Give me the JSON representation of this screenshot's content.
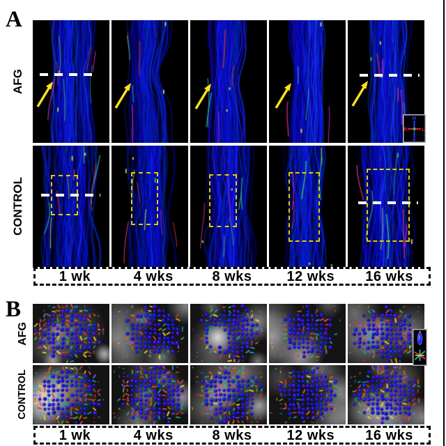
{
  "figure": {
    "panel_a": {
      "label": "A",
      "rows": [
        "AFG",
        "CONTROL"
      ],
      "timepoints": [
        "1 wk",
        "4 wks",
        "8 wks",
        "12 wks",
        "16 wks"
      ],
      "orientation_legend": {
        "top": "H",
        "bottom": "F",
        "left": "R",
        "right": "L"
      }
    },
    "panel_b": {
      "label": "B",
      "rows": [
        "AFG",
        "CONTROL"
      ],
      "timepoints": [
        "1 wk",
        "4 wks",
        "8 wks",
        "12 wks",
        "16 wks"
      ]
    },
    "colors": {
      "fiber_blue": "#1717dd",
      "annotation_yellow": "#ffe21a",
      "roi_yellow": "#dfce00",
      "annotation_white": "#ffffff",
      "legend_red": "#e22222",
      "legend_blue": "#2b3bff",
      "legend_green": "#27c24a",
      "figure_background": "#ffffff",
      "image_background": "#000000"
    }
  }
}
